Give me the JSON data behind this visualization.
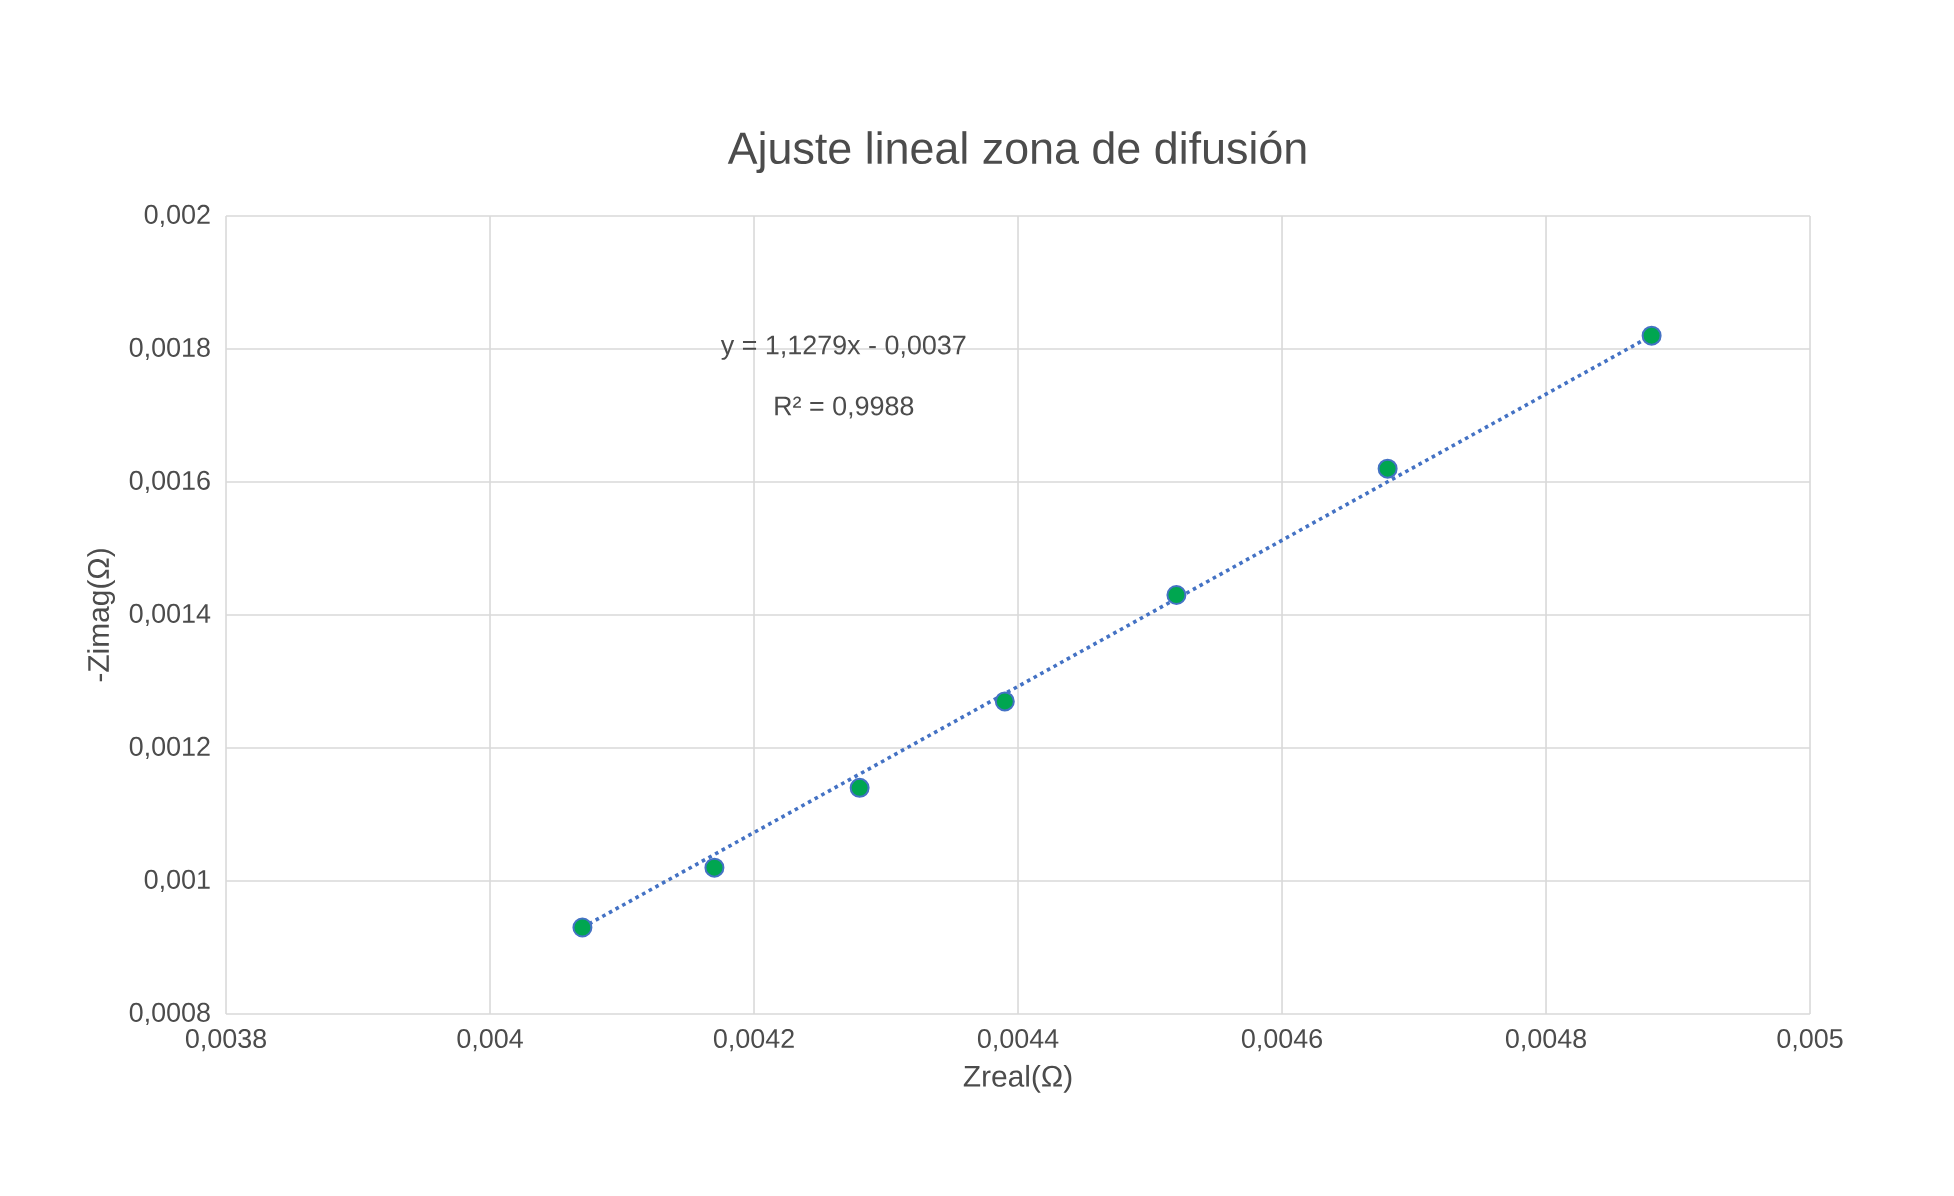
{
  "chart_data": {
    "type": "scatter",
    "title": "Ajuste lineal zona de difusión",
    "xlabel": "Zreal(Ω)",
    "ylabel": "-Zimag(Ω)",
    "x": [
      0.00407,
      0.00417,
      0.00428,
      0.00439,
      0.00452,
      0.00468,
      0.00488
    ],
    "series": [
      {
        "color": "#00a650",
        "values": [
          0.00093,
          0.00102,
          0.00114,
          0.00127,
          0.00143,
          0.00162,
          0.00182
        ],
        "marker": "circle"
      },
      {
        "type": "line",
        "color": "#4472c4",
        "x": [
          0.00407,
          0.00488
        ],
        "values": [
          0.00093,
          0.00182
        ],
        "line_style": "dotted",
        "marker": "none"
      }
    ],
    "xlim": [
      0.0038,
      0.005
    ],
    "ylim": [
      0.0008,
      0.002
    ],
    "xticks": [
      {
        "value": 0.0038,
        "label": "0,0038"
      },
      {
        "value": 0.004,
        "label": "0,004"
      },
      {
        "value": 0.0042,
        "label": "0,0042"
      },
      {
        "value": 0.0044,
        "label": "0,0044"
      },
      {
        "value": 0.0046,
        "label": "0,0046"
      },
      {
        "value": 0.0048,
        "label": "0,0048"
      },
      {
        "value": 0.005,
        "label": "0,005"
      }
    ],
    "yticks": [
      {
        "value": 0.0008,
        "label": "0,0008"
      },
      {
        "value": 0.001,
        "label": "0,001"
      },
      {
        "value": 0.0012,
        "label": "0,0012"
      },
      {
        "value": 0.0014,
        "label": "0,0014"
      },
      {
        "value": 0.0016,
        "label": "0,0016"
      },
      {
        "value": 0.0018,
        "label": "0,0018"
      },
      {
        "value": 0.002,
        "label": "0,002"
      }
    ],
    "grid": true,
    "annotations": [
      "y = 1,1279x - 0,0037",
      "R² = 0,9988"
    ]
  }
}
